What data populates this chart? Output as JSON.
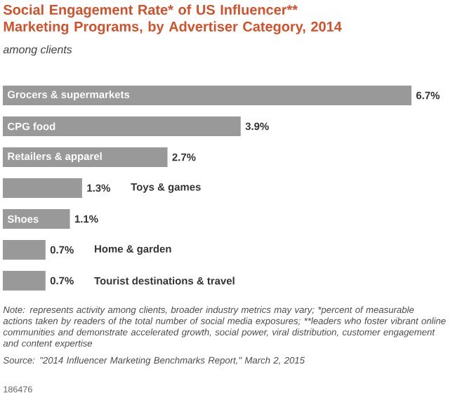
{
  "chart_data": {
    "type": "bar",
    "orientation": "horizontal",
    "title": "Social Engagement Rate* of US Influencer** Marketing Programs, by Advertiser Category, 2014",
    "subtitle": "among clients",
    "categories": [
      "Grocers & supermarkets",
      "CPG food",
      "Retailers & apparel",
      "Toys & games",
      "Shoes",
      "Home & garden",
      "Tourist destinations & travel"
    ],
    "values": [
      6.7,
      3.9,
      2.7,
      1.3,
      1.1,
      0.7,
      0.7
    ],
    "value_labels": [
      "6.7%",
      "3.9%",
      "2.7%",
      "1.3%",
      "1.1%",
      "0.7%",
      "0.7%"
    ],
    "color": "#999999",
    "annotations": [
      "Note: represents activity among clients, broader industry metrics may vary; *percent of measurable actions taken by readers of the total number of social media exposures; **leaders who foster vibrant online communities and demonstrate accelerated growth, social power, viral distribution, customer engagement and content expertise",
      "Source: \"2014 Influencer Marketing Benchmarks Report,\" March 2, 2015",
      "186476"
    ]
  }
}
